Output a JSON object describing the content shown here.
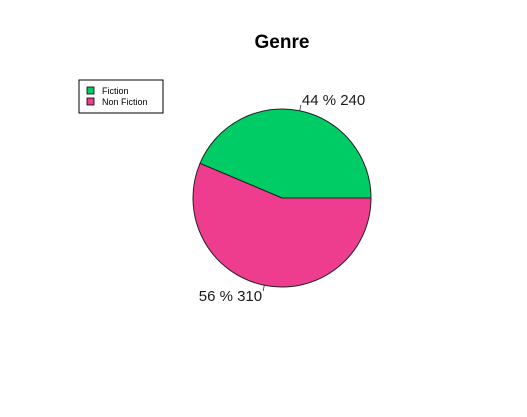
{
  "chart_data": {
    "type": "pie",
    "title": "Genre",
    "slices": [
      {
        "label": "Fiction",
        "value": 240,
        "percent": 44,
        "color": "#00cc66",
        "text": "44 % 240"
      },
      {
        "label": "Non Fiction",
        "value": 310,
        "percent": 56,
        "color": "#ee3d8f",
        "text": "56 % 310"
      }
    ],
    "legend": {
      "placement": "top-left",
      "entries": [
        "Fiction",
        "Non Fiction"
      ]
    }
  }
}
